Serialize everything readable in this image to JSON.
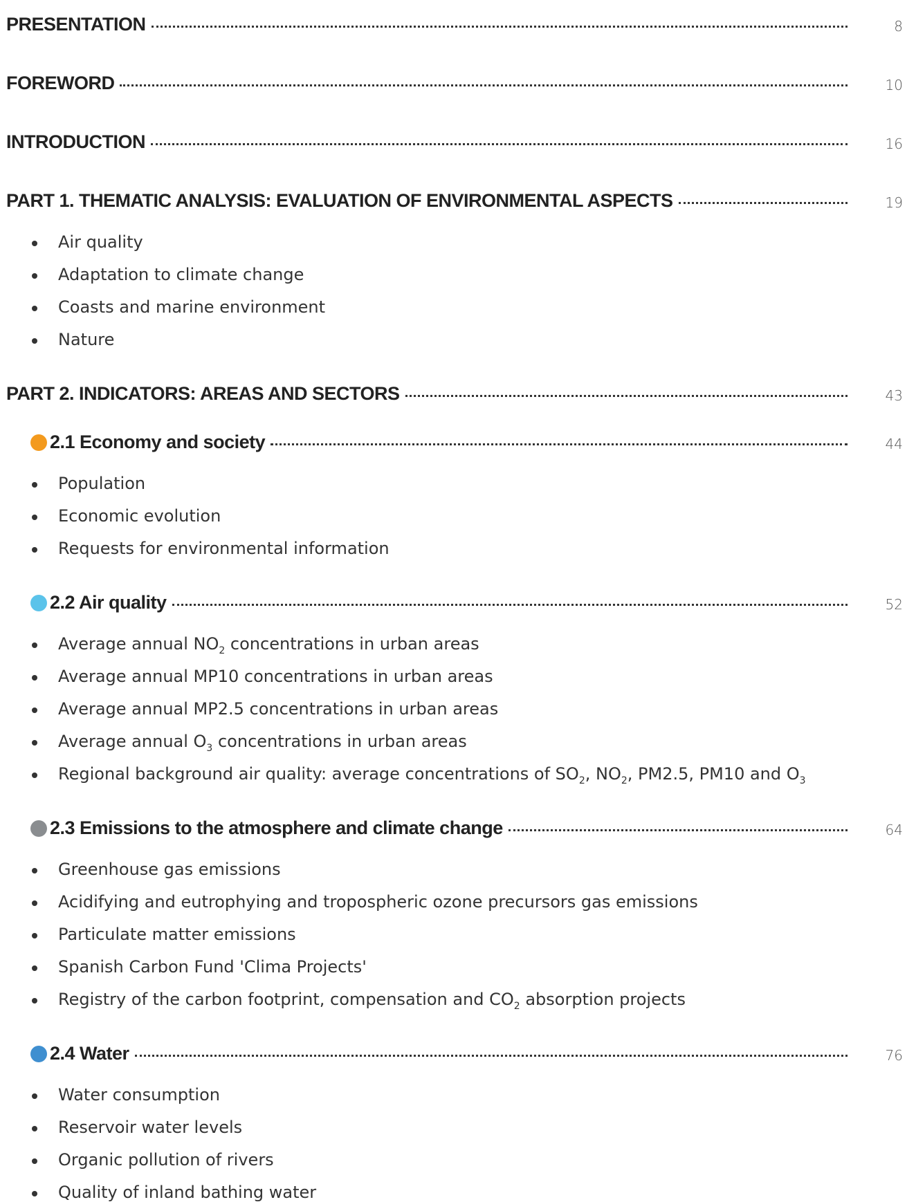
{
  "entries": [
    {
      "title": "PRESENTATION",
      "page": "8",
      "items": []
    },
    {
      "title": "FOREWORD",
      "page": "10",
      "items": []
    },
    {
      "title": "INTRODUCTION",
      "page": "16",
      "items": []
    },
    {
      "title": "PART 1. THEMATIC ANALYSIS: EVALUATION OF ENVIRONMENTAL ASPECTS",
      "page": "19",
      "items": [
        [
          {
            "text": "Air quality"
          }
        ],
        [
          {
            "text": "Adaptation to climate change"
          }
        ],
        [
          {
            "text": "Coasts and marine environment"
          }
        ],
        [
          {
            "text": "Nature"
          }
        ]
      ]
    },
    {
      "title": "PART 2.  INDICATORS: AREAS AND SECTORS",
      "page": "43",
      "items": []
    },
    {
      "title": "2.1 Economy and society",
      "page": "44",
      "icon": "#f39a1e",
      "items": [
        [
          {
            "text": "Population"
          }
        ],
        [
          {
            "text": "Economic evolution"
          }
        ],
        [
          {
            "text": "Requests for environmental information"
          }
        ]
      ]
    },
    {
      "title": "2.2 Air quality",
      "page": "52",
      "icon": "#5bc3ea",
      "items": [
        [
          {
            "text": "Average annual NO"
          },
          {
            "sub": "2"
          },
          {
            "text": " concentrations in urban areas"
          }
        ],
        [
          {
            "text": "Average annual MP10 concentrations in urban areas"
          }
        ],
        [
          {
            "text": "Average annual MP2.5 concentrations in urban areas"
          }
        ],
        [
          {
            "text": "Average annual O"
          },
          {
            "sub": "3"
          },
          {
            "text": " concentrations in urban areas"
          }
        ],
        [
          {
            "text": "Regional background air quality: average concentrations of SO"
          },
          {
            "sub": "2"
          },
          {
            "text": ", NO"
          },
          {
            "sub": "2"
          },
          {
            "text": ", PM2.5, PM10 and O"
          },
          {
            "sub": "3"
          }
        ]
      ]
    },
    {
      "title": "2.3 Emissions to the atmosphere and climate change",
      "page": "64",
      "icon": "#8a8d90",
      "items": [
        [
          {
            "text": "Greenhouse gas emissions"
          }
        ],
        [
          {
            "text": "Acidifying and eutrophying and tropospheric ozone precursors gas emissions"
          }
        ],
        [
          {
            "text": "Particulate matter emissions"
          }
        ],
        [
          {
            "text": "Spanish Carbon Fund 'Clima Projects'"
          }
        ],
        [
          {
            "text": "Registry of the carbon footprint, compensation and CO"
          },
          {
            "sub": "2"
          },
          {
            "text": " absorption projects"
          }
        ]
      ]
    },
    {
      "title": "2.4 Water",
      "page": "76",
      "icon": "#3f8fd0",
      "items": [
        [
          {
            "text": "Water consumption"
          }
        ],
        [
          {
            "text": "Reservoir water levels"
          }
        ],
        [
          {
            "text": "Organic pollution of rivers"
          }
        ],
        [
          {
            "text": "Quality of inland bathing water"
          }
        ]
      ]
    }
  ]
}
